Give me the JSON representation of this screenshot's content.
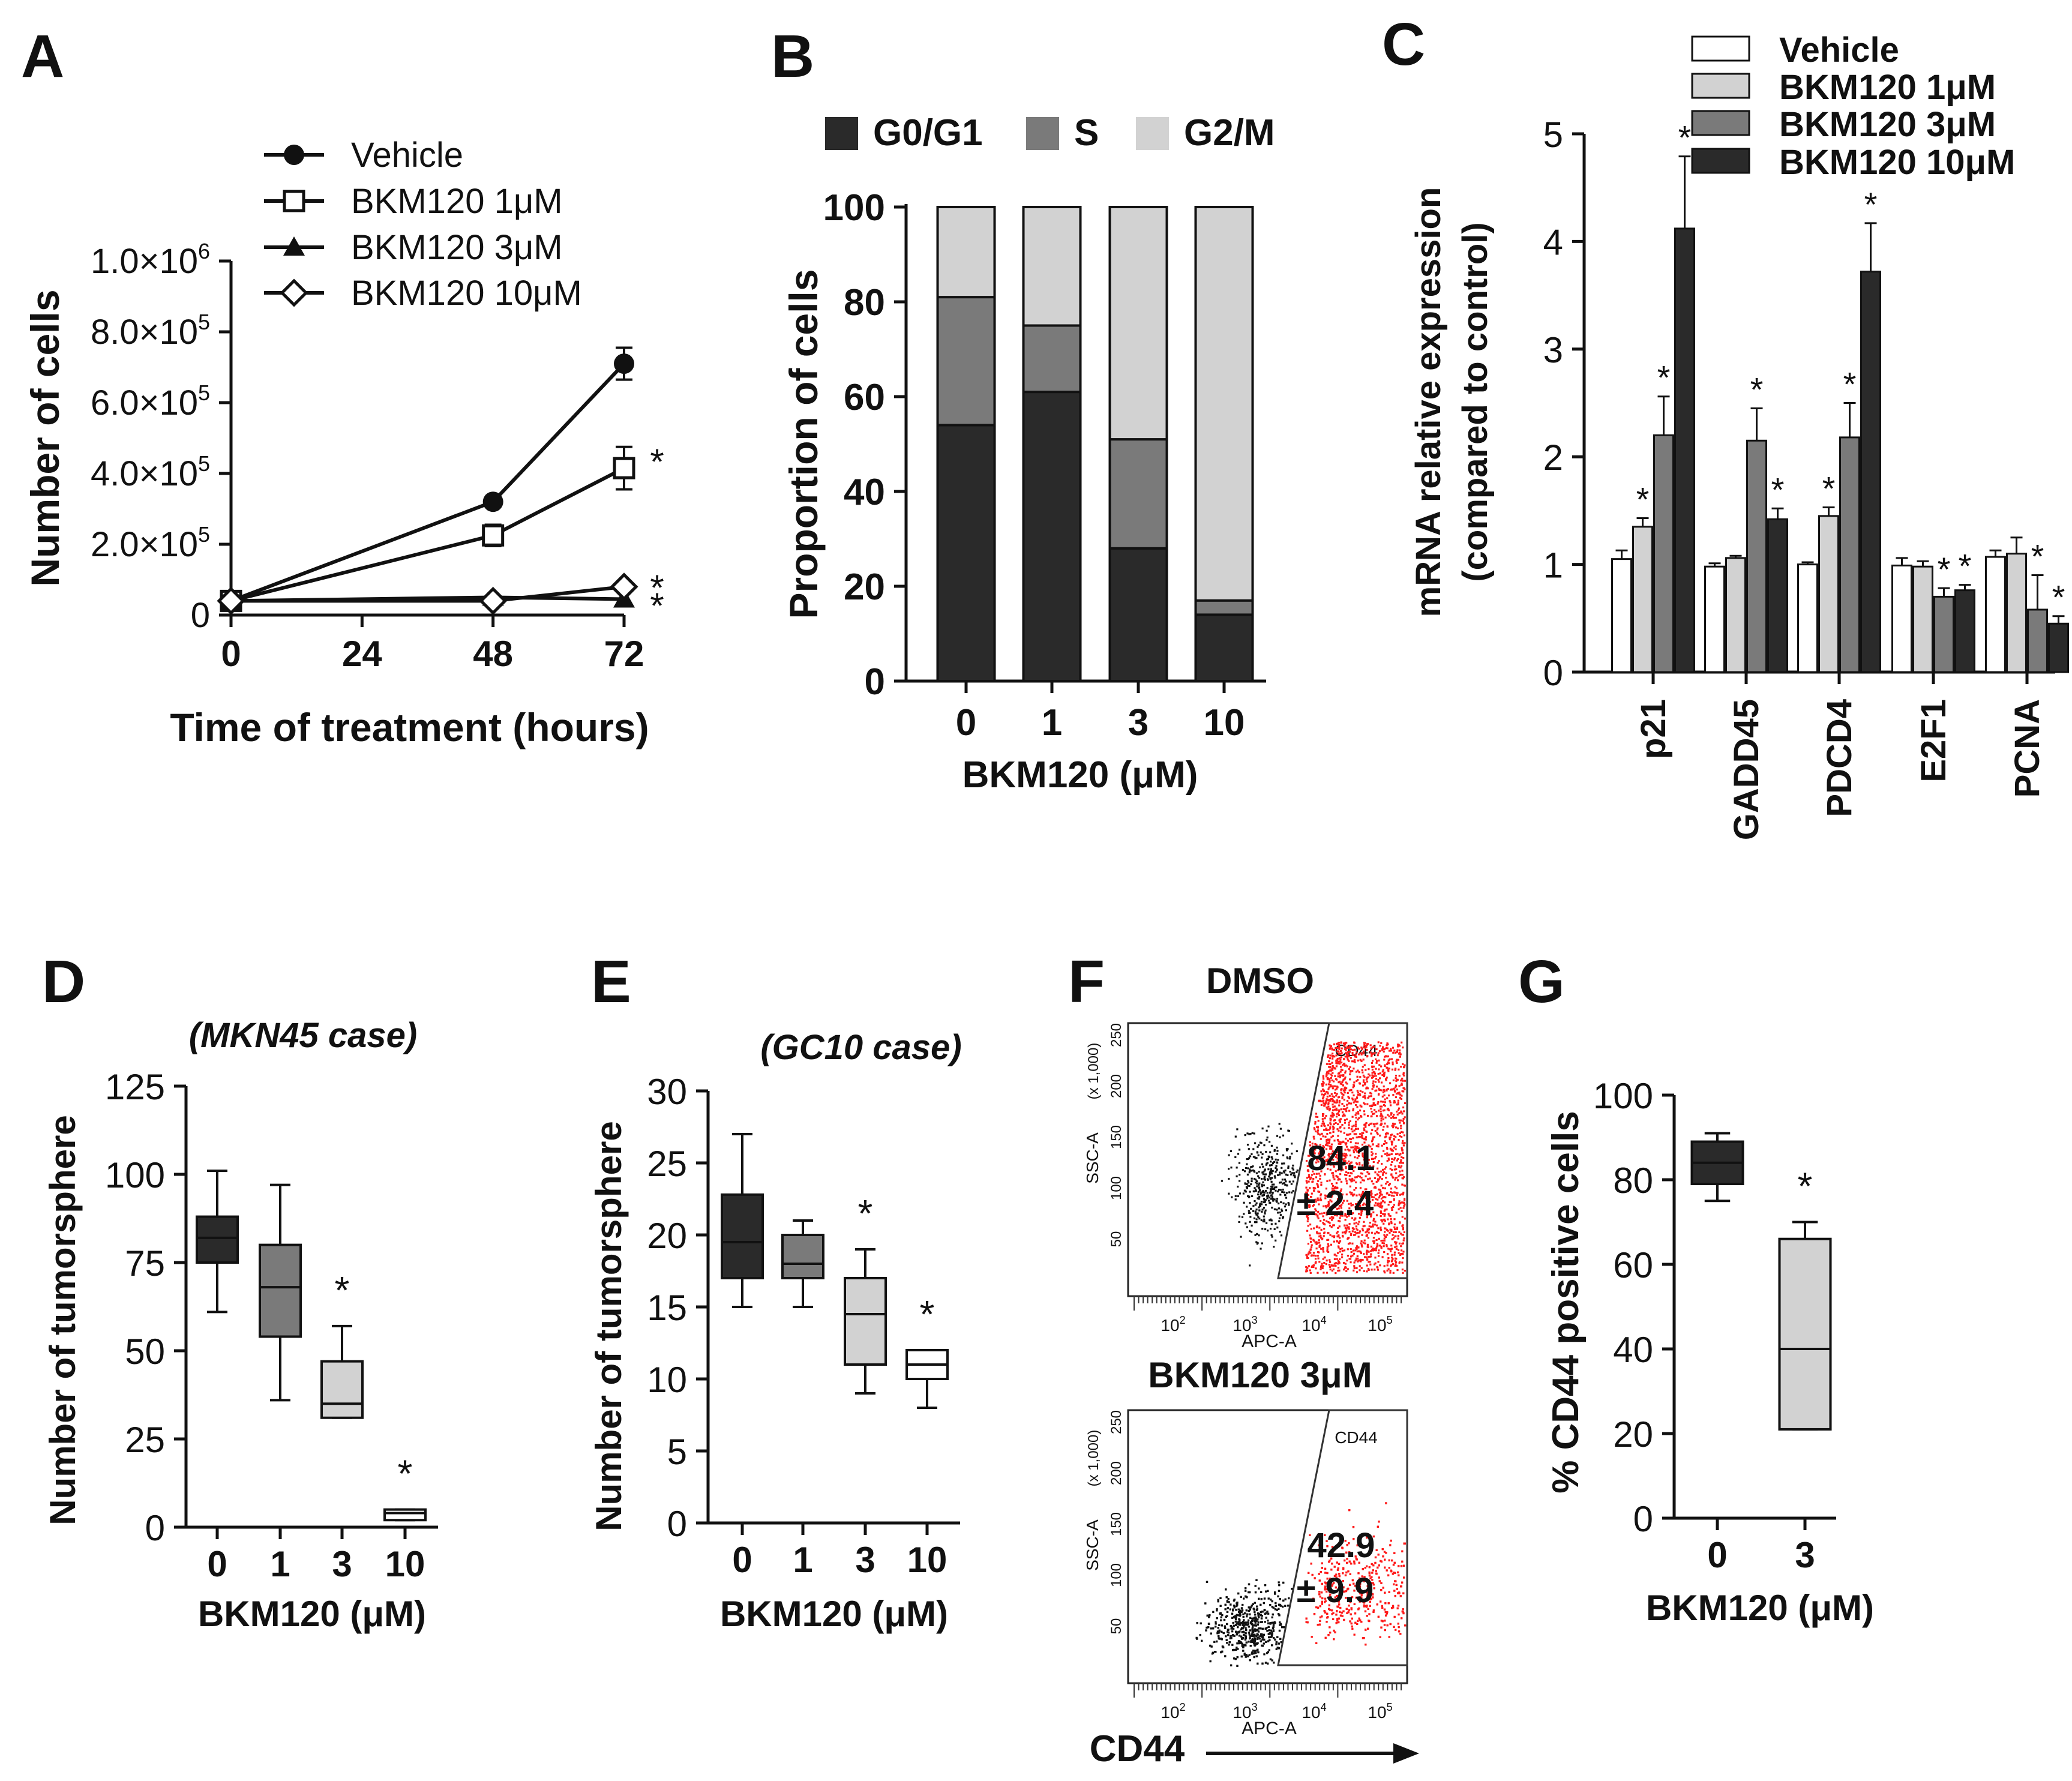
{
  "panels": {
    "A": {
      "letter": "A"
    },
    "B": {
      "letter": "B"
    },
    "C": {
      "letter": "C"
    },
    "D": {
      "letter": "D"
    },
    "E": {
      "letter": "E"
    },
    "F": {
      "letter": "F"
    },
    "G": {
      "letter": "G"
    }
  },
  "colors": {
    "black": "#2a2a2a",
    "dark": "#7a7a7a",
    "light": "#d2d2d2",
    "white": "#ffffff",
    "red": "#ff1a1a"
  },
  "chart_data": [
    {
      "id": "A",
      "type": "line",
      "title": "",
      "xlabel": "Time of treatment (hours)",
      "ylabel": "Number of cells",
      "x": [
        0,
        48,
        72
      ],
      "x_ticks": [
        "0",
        "24",
        "48",
        "72"
      ],
      "y_ticks": [
        {
          "v": 0,
          "base": "0",
          "exp": ""
        },
        {
          "v": 200000,
          "base": "2.0×10",
          "exp": "5"
        },
        {
          "v": 400000,
          "base": "4.0×10",
          "exp": "5"
        },
        {
          "v": 600000,
          "base": "6.0×10",
          "exp": "5"
        },
        {
          "v": 800000,
          "base": "8.0×10",
          "exp": "5"
        },
        {
          "v": 1000000,
          "base": "1.0×10",
          "exp": "6"
        }
      ],
      "ylim": [
        0,
        1000000
      ],
      "xlim": [
        0,
        72
      ],
      "series": [
        {
          "name": "Vehicle",
          "marker": "filled-circle",
          "values": [
            40000,
            320000,
            710000
          ],
          "errors": [
            0,
            0,
            45000
          ],
          "sig": ""
        },
        {
          "name": "BKM120 1μM",
          "marker": "open-square",
          "values": [
            40000,
            225000,
            415000
          ],
          "errors": [
            0,
            30000,
            60000
          ],
          "sig": "*"
        },
        {
          "name": "BKM120 3μM",
          "marker": "filled-triangle",
          "values": [
            40000,
            50000,
            45000
          ],
          "errors": [
            0,
            0,
            0
          ],
          "sig": "*"
        },
        {
          "name": "BKM120 10μM",
          "marker": "open-diamond",
          "values": [
            40000,
            40000,
            80000
          ],
          "errors": [
            0,
            0,
            0
          ],
          "sig": "*"
        }
      ]
    },
    {
      "id": "B",
      "type": "bar",
      "stacked": true,
      "xlabel": "BKM120 (μM)",
      "ylabel": "Proportion of cells",
      "categories": [
        "0",
        "1",
        "3",
        "10"
      ],
      "y_ticks": [
        "0",
        "20",
        "40",
        "60",
        "80",
        "100"
      ],
      "ylim": [
        0,
        100
      ],
      "series": [
        {
          "name": "G0/G1",
          "values": [
            54,
            61,
            28,
            14
          ]
        },
        {
          "name": "S",
          "values": [
            27,
            14,
            23,
            3
          ]
        },
        {
          "name": "G2/M",
          "values": [
            19,
            25,
            49,
            83
          ]
        }
      ]
    },
    {
      "id": "C",
      "type": "bar",
      "xlabel": "",
      "ylabel": "mRNA relative expression",
      "ylabel2": "(compared to control)",
      "categories": [
        "p21",
        "GADD45",
        "PDCD4",
        "E2F1",
        "PCNA"
      ],
      "y_ticks": [
        "0",
        "1",
        "2",
        "3",
        "4",
        "5"
      ],
      "ylim": [
        0,
        5
      ],
      "series": [
        {
          "name": "Vehicle",
          "values": [
            1.05,
            0.98,
            1.0,
            0.99,
            1.07
          ],
          "errors": [
            0.08,
            0.03,
            0.02,
            0.07,
            0.06
          ],
          "sig": [
            "",
            "",
            "",
            "",
            ""
          ]
        },
        {
          "name": "BKM120 1μM",
          "values": [
            1.35,
            1.06,
            1.45,
            0.98,
            1.1
          ],
          "errors": [
            0.08,
            0.02,
            0.08,
            0.05,
            0.15
          ],
          "sig": [
            "*",
            "",
            "*",
            "",
            ""
          ]
        },
        {
          "name": "BKM120 3μM",
          "values": [
            2.2,
            2.15,
            2.18,
            0.7,
            0.58
          ],
          "errors": [
            0.36,
            0.3,
            0.32,
            0.08,
            0.32
          ],
          "sig": [
            "*",
            "*",
            "*",
            "*",
            "*"
          ]
        },
        {
          "name": "BKM120 10μM",
          "values": [
            4.12,
            1.42,
            3.72,
            0.76,
            0.45
          ],
          "errors": [
            0.67,
            0.1,
            0.45,
            0.05,
            0.07
          ],
          "sig": [
            "*",
            "*",
            "*",
            "*",
            "*"
          ]
        }
      ]
    },
    {
      "id": "D",
      "type": "box",
      "title": "(MKN45 case)",
      "xlabel": "BKM120 (μM)",
      "ylabel": "Number of tumorsphere",
      "categories": [
        "0",
        "1",
        "3",
        "10"
      ],
      "y_ticks": [
        "0",
        "25",
        "50",
        "75",
        "100",
        "125"
      ],
      "ylim": [
        0,
        125
      ],
      "boxes": [
        {
          "min": 61,
          "q1": 75,
          "median": 82,
          "q3": 88,
          "max": 101,
          "sig": ""
        },
        {
          "min": 36,
          "q1": 54,
          "median": 68,
          "q3": 80,
          "max": 97,
          "sig": ""
        },
        {
          "min": 31,
          "q1": 31,
          "median": 35,
          "q3": 47,
          "max": 57,
          "sig": "*"
        },
        {
          "min": 2,
          "q1": 2,
          "median": 4,
          "q3": 5,
          "max": 5,
          "sig": "*"
        }
      ]
    },
    {
      "id": "E",
      "type": "box",
      "title": "(GC10 case)",
      "xlabel": "BKM120 (μM)",
      "ylabel": "Number of tumorsphere",
      "categories": [
        "0",
        "1",
        "3",
        "10"
      ],
      "y_ticks": [
        "0",
        "5",
        "10",
        "15",
        "20",
        "25",
        "30"
      ],
      "ylim": [
        0,
        30
      ],
      "boxes": [
        {
          "min": 15,
          "q1": 17,
          "median": 19.5,
          "q3": 22.8,
          "max": 27,
          "sig": ""
        },
        {
          "min": 15,
          "q1": 17,
          "median": 18,
          "q3": 20,
          "max": 21,
          "sig": ""
        },
        {
          "min": 9,
          "q1": 11,
          "median": 14.5,
          "q3": 17,
          "max": 19,
          "sig": "*"
        },
        {
          "min": 8,
          "q1": 10,
          "median": 11,
          "q3": 12,
          "max": 12,
          "sig": "*"
        }
      ]
    },
    {
      "id": "F",
      "type": "scatter",
      "plots": [
        {
          "title": "DMSO",
          "gate_label": "CD44",
          "value": "84.1",
          "sd": "± 2.4",
          "ylabel": "SSC-A",
          "yunit": "(x 1,000)",
          "xlabel": "APC-A"
        },
        {
          "title": "BKM120 3μM",
          "gate_label": "CD44",
          "value": "42.9",
          "sd": "± 9.9",
          "ylabel": "SSC-A",
          "yunit": "(x 1,000)",
          "xlabel": "APC-A"
        }
      ],
      "y_ticks": [
        "50",
        "100",
        "150",
        "200",
        "250"
      ],
      "x_ticks": [
        "10",
        "10",
        "10",
        "10"
      ],
      "x_ticks_exp": [
        "2",
        "3",
        "4",
        "5"
      ],
      "axis_arrow_label": "CD44"
    },
    {
      "id": "G",
      "type": "box",
      "xlabel": "BKM120 (μM)",
      "ylabel": "% CD44 positive cells",
      "categories": [
        "0",
        "3"
      ],
      "y_ticks": [
        "0",
        "20",
        "40",
        "60",
        "80",
        "100"
      ],
      "ylim": [
        0,
        100
      ],
      "boxes": [
        {
          "min": 75,
          "q1": 79,
          "median": 84,
          "q3": 89,
          "max": 91,
          "sig": ""
        },
        {
          "min": 21,
          "q1": 21,
          "median": 40,
          "q3": 66,
          "max": 70,
          "sig": "*"
        }
      ]
    }
  ]
}
